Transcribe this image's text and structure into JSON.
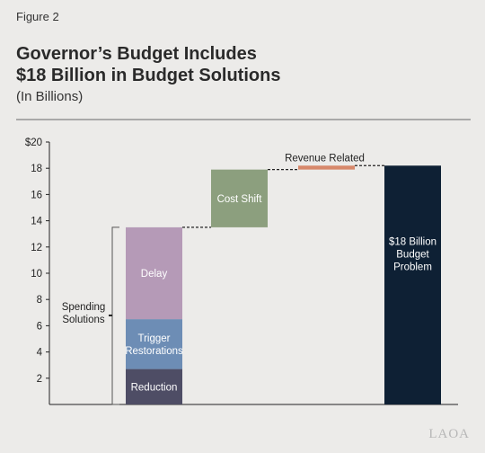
{
  "figure_label": "Figure 2",
  "title_line1": "Governor’s Budget Includes",
  "title_line2": "$18 Billion in Budget Solutions",
  "subtitle": "(In Billions)",
  "watermark": "LAOA",
  "colors": {
    "reduction": "#4e4d65",
    "trigger": "#6d8db5",
    "delay": "#b59ab7",
    "cost_shift": "#8c9f7e",
    "revenue": "#d7886b",
    "total": "#0e2034",
    "background": "#ecebe9"
  },
  "chart_data": {
    "type": "bar",
    "subtype": "waterfall",
    "ylim": [
      0,
      20
    ],
    "y_ticks": [
      {
        "value": 2,
        "label": "2"
      },
      {
        "value": 4,
        "label": "4"
      },
      {
        "value": 6,
        "label": "6"
      },
      {
        "value": 8,
        "label": "8"
      },
      {
        "value": 10,
        "label": "10"
      },
      {
        "value": 12,
        "label": "12"
      },
      {
        "value": 14,
        "label": "14"
      },
      {
        "value": 16,
        "label": "16"
      },
      {
        "value": 18,
        "label": "18"
      },
      {
        "value": 20,
        "label": "$20"
      }
    ],
    "segments": [
      {
        "label": "Reduction",
        "bar": 1,
        "start": 0,
        "end": 2.7,
        "color_key": "reduction"
      },
      {
        "label": "Trigger Restorations",
        "bar": 1,
        "start": 2.7,
        "end": 6.5,
        "color_key": "trigger"
      },
      {
        "label": "Delay",
        "bar": 1,
        "start": 6.5,
        "end": 13.5,
        "color_key": "delay"
      },
      {
        "label": "Cost Shift",
        "bar": 2,
        "start": 13.5,
        "end": 17.9,
        "color_key": "cost_shift"
      },
      {
        "label": "Revenue Related",
        "bar": 3,
        "start": 17.9,
        "end": 18.2,
        "color_key": "revenue"
      },
      {
        "label": "$18 Billion Budget Problem",
        "bar": 4,
        "start": 0,
        "end": 18.2,
        "color_key": "total"
      }
    ],
    "bracket_label": "Spending Solutions",
    "bracket_range": [
      0,
      13.5
    ],
    "connectors": [
      {
        "from_bar": 1,
        "to_bar": 2,
        "value": 13.5
      },
      {
        "from_bar": 2,
        "to_bar": 3,
        "value": 17.9
      },
      {
        "from_bar": 3,
        "to_bar": 4,
        "value": 18.2
      }
    ]
  }
}
